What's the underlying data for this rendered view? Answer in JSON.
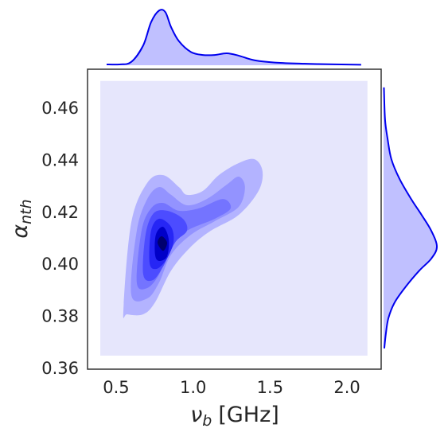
{
  "chart_data": {
    "type": "jointkde",
    "xlabel": {
      "symbol": "ν",
      "sub": "b",
      "unit": "[GHz]"
    },
    "ylabel": {
      "symbol": "α",
      "sub": "nth"
    },
    "xlim": [
      0.314,
      2.222
    ],
    "ylim": [
      0.36,
      0.4753
    ],
    "xticks": [
      0.5,
      {
        "value": 1,
        "label": "1.0"
      },
      1.5,
      {
        "value": 2,
        "label": "2.0"
      }
    ],
    "yticks": [
      0.36,
      0.38,
      {
        "value": 0.4,
        "label": "0.40"
      },
      0.42,
      0.44,
      0.46
    ],
    "support": {
      "color": "#e6e6fc",
      "x": [
        0.397,
        2.133
      ],
      "y": [
        0.3652,
        0.4708
      ]
    },
    "contours": [
      {
        "color": "#b3b3ff",
        "x": [
          0.547,
          0.598,
          0.702,
          0.805,
          0.908,
          0.96,
          1.063,
          1.167,
          1.296,
          1.399,
          1.451,
          1.425,
          1.296,
          1.115,
          0.986,
          0.857,
          0.753,
          0.676,
          0.572
        ],
        "y": [
          0.3826,
          0.4163,
          0.4316,
          0.4346,
          0.43,
          0.427,
          0.4285,
          0.4346,
          0.4392,
          0.4407,
          0.4361,
          0.4285,
          0.4193,
          0.4132,
          0.4071,
          0.3979,
          0.3857,
          0.3811,
          0.3811
        ]
      },
      {
        "color": "#9393ff",
        "x": [
          0.598,
          0.634,
          0.702,
          0.779,
          0.857,
          0.96,
          1.089,
          1.218,
          1.296,
          1.337,
          1.296,
          1.141,
          0.986,
          0.857,
          0.779,
          0.702
        ],
        "y": [
          0.3887,
          0.4132,
          0.4254,
          0.43,
          0.427,
          0.423,
          0.4254,
          0.4309,
          0.434,
          0.43,
          0.4224,
          0.4169,
          0.4117,
          0.404,
          0.3933,
          0.3872
        ]
      },
      {
        "color": "#7474ff",
        "x": [
          0.634,
          0.665,
          0.727,
          0.805,
          0.908,
          1.037,
          1.193,
          1.244,
          1.141,
          0.96,
          0.857,
          0.779,
          0.702
        ],
        "y": [
          0.3933,
          0.4132,
          0.4218,
          0.4239,
          0.4209,
          0.4218,
          0.4254,
          0.4218,
          0.4178,
          0.4132,
          0.4071,
          0.3964,
          0.3912
        ]
      },
      {
        "color": "#4c4cff",
        "x": [
          0.676,
          0.691,
          0.743,
          0.831,
          0.934,
          0.96,
          0.882,
          0.805,
          0.738
        ],
        "y": [
          0.3964,
          0.4117,
          0.4199,
          0.4209,
          0.4178,
          0.4132,
          0.4086,
          0.3994,
          0.3942
        ]
      },
      {
        "color": "#2626f5",
        "x": [
          0.717,
          0.727,
          0.779,
          0.857,
          0.872,
          0.82,
          0.758
        ],
        "y": [
          0.401,
          0.4132,
          0.4178,
          0.4147,
          0.4086,
          0.4016,
          0.3985
        ]
      },
      {
        "color": "#0000c8",
        "x": [
          0.753,
          0.758,
          0.805,
          0.841,
          0.831,
          0.779
        ],
        "y": [
          0.404,
          0.4117,
          0.4147,
          0.4101,
          0.4034,
          0.4016
        ]
      },
      {
        "color": "#00006e",
        "x": [
          0.769,
          0.795,
          0.831,
          0.805
        ],
        "y": [
          0.4086,
          0.4111,
          0.4086,
          0.4055
        ]
      }
    ],
    "marginal_x": {
      "color": "#0000ee",
      "fill": "#c0c0ff",
      "density_lim": [
        0,
        3.6
      ],
      "x": [
        0.438,
        0.521,
        0.598,
        0.676,
        0.727,
        0.779,
        0.82,
        0.857,
        0.908,
        0.986,
        1.063,
        1.141,
        1.218,
        1.296,
        1.399,
        1.554,
        1.813,
        2.092
      ],
      "density": [
        0.05,
        0.05,
        0.2,
        1.2,
        2.6,
        3.3,
        3.2,
        2.3,
        1.45,
        0.8,
        0.62,
        0.62,
        0.72,
        0.58,
        0.3,
        0.15,
        0.07,
        0.03
      ]
    },
    "marginal_y": {
      "color": "#0000ee",
      "fill": "#c0c0ff",
      "density_lim": [
        0,
        16
      ],
      "y": [
        0.4683,
        0.456,
        0.4484,
        0.4407,
        0.4331,
        0.4254,
        0.4193,
        0.4132,
        0.4071,
        0.4025,
        0.3979,
        0.3918,
        0.3857,
        0.3796,
        0.3734,
        0.368
      ],
      "density": [
        0.1,
        0.4,
        1.1,
        2.1,
        4.3,
        7.4,
        10.2,
        12.8,
        14.3,
        12.8,
        9.6,
        6.0,
        3.0,
        1.3,
        0.6,
        0.2
      ]
    }
  }
}
